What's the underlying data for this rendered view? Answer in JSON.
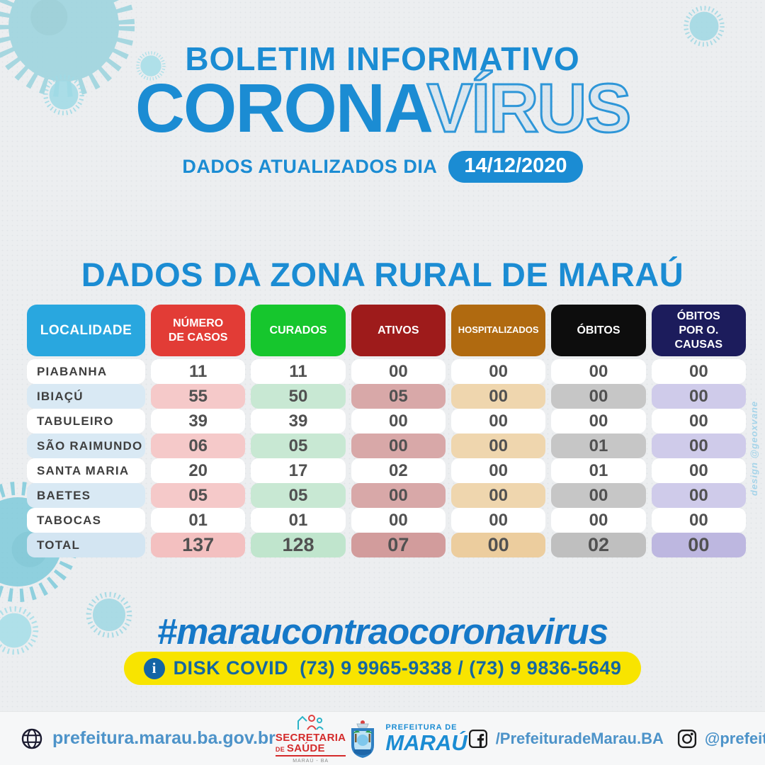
{
  "page": {
    "background": "#ECEEF0",
    "accent_blue": "#1B8CD3"
  },
  "header": {
    "kicker": "BOLETIM INFORMATIVO",
    "brand_solid": "CORONA",
    "brand_outline": "VÍRUS",
    "updated_label": "DADOS ATUALIZADOS DIA",
    "date_badge": "14/12/2020"
  },
  "section": {
    "title": "DADOS DA ZONA RURAL DE MARAÚ"
  },
  "credit": "design @geoxvane",
  "chart_data": {
    "type": "table",
    "title": "DADOS DA ZONA RURAL DE MARAÚ",
    "columns": [
      {
        "key": "localidade",
        "label": "LOCALIDADE",
        "color": "#29A7DF",
        "tint": "#D9E9F4",
        "tint_total": "#D3E5F2"
      },
      {
        "key": "casos",
        "label": "NÚMERO\nDE CASOS",
        "color": "#E23C36",
        "tint": "#F5C9C9",
        "tint_total": "#F3C0C0"
      },
      {
        "key": "curados",
        "label": "CURADOS",
        "color": "#16C62D",
        "tint": "#C8E8D3",
        "tint_total": "#C0E5CD"
      },
      {
        "key": "ativos",
        "label": "ATIVOS",
        "color": "#9E1B1B",
        "tint": "#D8A8A8",
        "tint_total": "#D29C9C"
      },
      {
        "key": "hosp",
        "label": "HOSPITALIZADOS",
        "color": "#B06A10",
        "tint": "#EFD6AE",
        "tint_total": "#ECCD9E"
      },
      {
        "key": "obitos",
        "label": "ÓBITOS",
        "color": "#0D0D0D",
        "tint": "#C6C6C6",
        "tint_total": "#BFBFBF"
      },
      {
        "key": "ocausas",
        "label": "ÓBITOS\nPOR O. CAUSAS",
        "color": "#1C1C5C",
        "tint": "#CFCBEA",
        "tint_total": "#BDB7E0"
      }
    ],
    "rows": [
      {
        "localidade": "PIABANHA",
        "casos": "11",
        "curados": "11",
        "ativos": "00",
        "hosp": "00",
        "obitos": "00",
        "ocausas": "00"
      },
      {
        "localidade": "IBIAÇÚ",
        "casos": "55",
        "curados": "50",
        "ativos": "05",
        "hosp": "00",
        "obitos": "00",
        "ocausas": "00"
      },
      {
        "localidade": "TABULEIRO",
        "casos": "39",
        "curados": "39",
        "ativos": "00",
        "hosp": "00",
        "obitos": "00",
        "ocausas": "00"
      },
      {
        "localidade": "SÃO RAIMUNDO",
        "casos": "06",
        "curados": "05",
        "ativos": "00",
        "hosp": "00",
        "obitos": "01",
        "ocausas": "00"
      },
      {
        "localidade": "SANTA MARIA",
        "casos": "20",
        "curados": "17",
        "ativos": "02",
        "hosp": "00",
        "obitos": "01",
        "ocausas": "00"
      },
      {
        "localidade": "BAETES",
        "casos": "05",
        "curados": "05",
        "ativos": "00",
        "hosp": "00",
        "obitos": "00",
        "ocausas": "00"
      },
      {
        "localidade": "TABOCAS",
        "casos": "01",
        "curados": "01",
        "ativos": "00",
        "hosp": "00",
        "obitos": "00",
        "ocausas": "00"
      },
      {
        "localidade": "TOTAL",
        "casos": "137",
        "curados": "128",
        "ativos": "07",
        "hosp": "00",
        "obitos": "02",
        "ocausas": "00"
      }
    ]
  },
  "campaign": {
    "hashtag": "#maraucontraocoronavirus",
    "hotline_label": "DISK COVID",
    "hotline_phones": "(73) 9 9965-9338 / (73) 9 9836-5649",
    "info_icon_glyph": "i"
  },
  "footer": {
    "website": "prefeitura.marau.ba.gov.br",
    "secretaria_line1": "SECRETARIA",
    "secretaria_de": " DE ",
    "secretaria_line2": "SAÚDE",
    "secretaria_sub": "MARAÚ - BA",
    "prefeitura_small": "PREFEITURA DE",
    "prefeitura_big": "MARAÚ",
    "facebook_handle": "/PrefeituradeMarau.BA",
    "instagram_handle": "@prefeiturademarau"
  }
}
